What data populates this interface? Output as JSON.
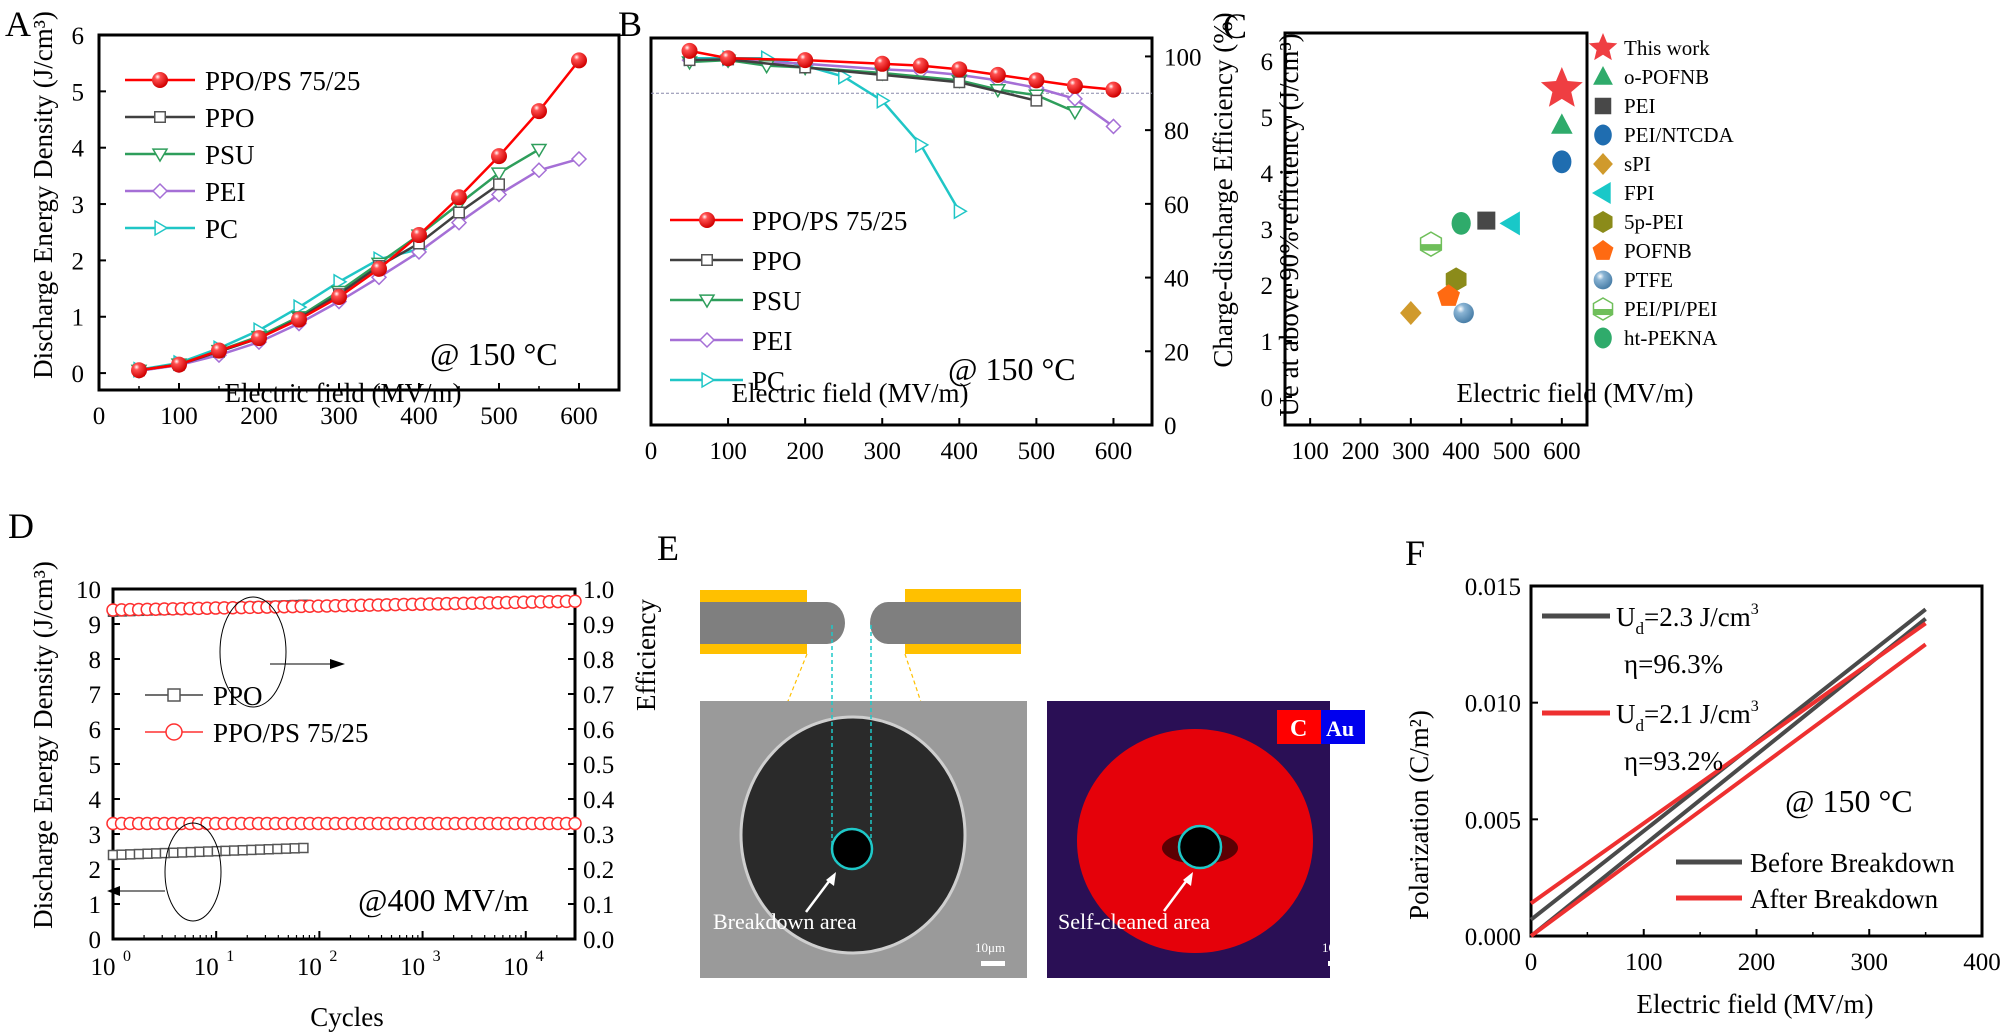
{
  "chart_data": [
    {
      "panel": "A",
      "type": "line",
      "xlabel": "Electric field (MV/m)",
      "ylabel": "Discharge Energy Density (J/cm³)",
      "xlim": [
        0,
        650
      ],
      "ylim": [
        -0.3,
        6
      ],
      "xticks": [
        0,
        100,
        200,
        300,
        400,
        500,
        600
      ],
      "yticks": [
        0,
        1,
        2,
        3,
        4,
        5,
        6
      ],
      "annotation": "@ 150 °C",
      "legend_position": "top-left",
      "series": [
        {
          "name": "PPO/PS 75/25",
          "color": "#ff0000",
          "marker": "ball",
          "x": [
            50,
            100,
            150,
            200,
            250,
            300,
            350,
            400,
            450,
            500,
            550,
            600
          ],
          "y": [
            0.05,
            0.15,
            0.4,
            0.62,
            0.95,
            1.35,
            1.85,
            2.45,
            3.12,
            3.85,
            4.65,
            5.55
          ]
        },
        {
          "name": "PPO",
          "color": "#404040",
          "marker": "square",
          "x": [
            50,
            100,
            150,
            200,
            250,
            300,
            350,
            400,
            450,
            500
          ],
          "y": [
            0.05,
            0.15,
            0.38,
            0.62,
            0.97,
            1.4,
            1.9,
            2.3,
            2.85,
            3.35
          ]
        },
        {
          "name": "PSU",
          "color": "#2e9e5b",
          "marker": "triangle-down",
          "x": [
            50,
            100,
            150,
            200,
            250,
            300,
            350,
            400,
            450,
            500,
            550
          ],
          "y": [
            0.05,
            0.16,
            0.4,
            0.65,
            1.0,
            1.45,
            1.95,
            2.45,
            3.0,
            3.55,
            3.97
          ]
        },
        {
          "name": "PEI",
          "color": "#a56fd6",
          "marker": "diamond",
          "x": [
            50,
            100,
            150,
            200,
            250,
            300,
            350,
            400,
            450,
            500,
            550,
            600
          ],
          "y": [
            0.04,
            0.14,
            0.32,
            0.55,
            0.88,
            1.27,
            1.7,
            2.15,
            2.67,
            3.17,
            3.6,
            3.8
          ]
        },
        {
          "name": "PC",
          "color": "#20c6c6",
          "marker": "triangle-right",
          "x": [
            50,
            100,
            150,
            200,
            250,
            300,
            350,
            400
          ],
          "y": [
            0.06,
            0.18,
            0.44,
            0.76,
            1.17,
            1.62,
            2.02,
            2.2
          ]
        }
      ]
    },
    {
      "panel": "B",
      "type": "line",
      "xlabel": "Electric field (MV/m)",
      "ylabel": "Charge-discharge Efficiency (%)",
      "xlim": [
        0,
        650
      ],
      "ylim": [
        0,
        105
      ],
      "xticks": [
        0,
        100,
        200,
        300,
        400,
        500,
        600
      ],
      "yticks": [
        0,
        20,
        40,
        60,
        80,
        100
      ],
      "y_axis_side": "right",
      "reference_line_y": 90,
      "annotation": "@ 150 °C",
      "legend_position": "bottom-left",
      "series": [
        {
          "name": "PPO/PS 75/25",
          "color": "#ff0000",
          "marker": "ball",
          "x": [
            50,
            100,
            200,
            300,
            350,
            400,
            450,
            500,
            550,
            600
          ],
          "y": [
            101.5,
            99.5,
            99,
            98,
            97.5,
            96.5,
            95,
            93.5,
            92,
            91
          ]
        },
        {
          "name": "PPO",
          "color": "#404040",
          "marker": "square",
          "x": [
            50,
            100,
            200,
            300,
            400,
            500
          ],
          "y": [
            99,
            99.2,
            97,
            95,
            93,
            88
          ]
        },
        {
          "name": "PSU",
          "color": "#2e9e5b",
          "marker": "triangle-down",
          "x": [
            50,
            100,
            150,
            200,
            300,
            400,
            450,
            500,
            550
          ],
          "y": [
            98.5,
            99,
            97.5,
            97,
            95.5,
            93.5,
            91,
            89.5,
            85
          ]
        },
        {
          "name": "PEI",
          "color": "#a56fd6",
          "marker": "diamond",
          "x": [
            50,
            100,
            200,
            300,
            350,
            400,
            450,
            500,
            550,
            600
          ],
          "y": [
            99,
            99,
            98,
            96.5,
            96,
            95,
            93.5,
            91.5,
            88.5,
            81
          ]
        },
        {
          "name": "PC",
          "color": "#20c6c6",
          "marker": "triangle-right",
          "x": [
            50,
            100,
            150,
            200,
            250,
            300,
            350,
            400
          ],
          "y": [
            99.5,
            99.5,
            99.5,
            97.5,
            94.5,
            88,
            76,
            58
          ]
        }
      ]
    },
    {
      "panel": "C",
      "type": "scatter",
      "xlabel": "Electric field (MV/m)",
      "ylabel": "Ue at above 90% efficiency (J/cm³)",
      "xlim": [
        50,
        650
      ],
      "ylim": [
        -0.5,
        6.5
      ],
      "xticks": [
        100,
        200,
        300,
        400,
        500,
        600
      ],
      "yticks": [
        0,
        1,
        2,
        3,
        4,
        5,
        6
      ],
      "legend_position": "right-outside",
      "points": [
        {
          "name": "This work",
          "x": 600,
          "y": 5.5,
          "color": "#ef3e42",
          "marker": "star"
        },
        {
          "name": "o-POFNB",
          "x": 600,
          "y": 4.85,
          "color": "#2fab6b",
          "marker": "triangle-up"
        },
        {
          "name": "PEI",
          "x": 450,
          "y": 3.15,
          "color": "#484848",
          "marker": "square"
        },
        {
          "name": "PEI/NTCDA",
          "x": 600,
          "y": 4.2,
          "color": "#1f6db0",
          "marker": "circle"
        },
        {
          "name": "sPI",
          "x": 300,
          "y": 1.5,
          "color": "#d09a2c",
          "marker": "diamond"
        },
        {
          "name": "FPI",
          "x": 500,
          "y": 3.1,
          "color": "#19c8c8",
          "marker": "triangle-left"
        },
        {
          "name": "5p-PEI",
          "x": 390,
          "y": 2.1,
          "color": "#8b8b1a",
          "marker": "hexagon"
        },
        {
          "name": "POFNB",
          "x": 375,
          "y": 1.8,
          "color": "#ff6a12",
          "marker": "pentagon"
        },
        {
          "name": "PTFE",
          "x": 405,
          "y": 1.5,
          "color": "#5f95c0",
          "marker": "ball"
        },
        {
          "name": "PEI/PI/PEI",
          "x": 340,
          "y": 2.73,
          "color": "#6fbf5a",
          "marker": "hexagon-half"
        },
        {
          "name": "ht-PEKNA",
          "x": 400,
          "y": 3.1,
          "color": "#2fab6b",
          "marker": "circle"
        }
      ]
    },
    {
      "panel": "D",
      "type": "scatter",
      "xlabel": "Cycles",
      "ylabel_left": "Discharge Energy Density (J/cm³)",
      "ylabel_right": "Efficiency",
      "xscale": "log",
      "xlim": [
        1,
        30000
      ],
      "ylim_left": [
        0,
        10
      ],
      "ylim_right": [
        0,
        1.0
      ],
      "xticks": [
        "10^0",
        "10^1",
        "10^2",
        "10^3",
        "10^4"
      ],
      "yticks_left": [
        0,
        1,
        2,
        3,
        4,
        5,
        6,
        7,
        8,
        9,
        10
      ],
      "yticks_right": [
        "0.0",
        "0.1",
        "0.2",
        "0.3",
        "0.4",
        "0.5",
        "0.6",
        "0.7",
        "0.8",
        "0.9",
        "1.0"
      ],
      "annotation": "@400 MV/m",
      "legend_position": "middle-left",
      "series": [
        {
          "name": "PPO",
          "color": "#404040",
          "marker": "square",
          "energy": {
            "x_range": [
              1,
              70
            ],
            "y_start": 2.4,
            "y_end": 2.6
          },
          "efficiency": {
            "x_range": [
              1,
              70
            ],
            "y_start": 0.935,
            "y_end": 0.955
          }
        },
        {
          "name": "PPO/PS 75/25",
          "color": "#ff3030",
          "marker": "circle-open",
          "energy": {
            "x_range": [
              1,
              30000
            ],
            "y_start": 3.3,
            "y_end": 3.3
          },
          "efficiency": {
            "x_range": [
              1,
              30000
            ],
            "y_start": 0.94,
            "y_end": 0.965
          }
        }
      ]
    },
    {
      "panel": "F",
      "type": "line",
      "xlabel": "Electric field (MV/m)",
      "ylabel": "Polarization (C/m²)",
      "xlim": [
        0,
        400
      ],
      "ylim": [
        0,
        0.015
      ],
      "xticks": [
        0,
        100,
        200,
        300,
        400
      ],
      "yticks": [
        "0.000",
        "0.005",
        "0.010",
        "0.015"
      ],
      "annotation": "@ 150 °C",
      "legend_position": "bottom-right",
      "series": [
        {
          "name": "Before Breakdown",
          "color": "#4a4a4a",
          "Emax": 350,
          "Pmax": 0.0136,
          "P0": 0.0003,
          "loop_width": 0.0004,
          "Ud_label": "U",
          "Ud_sub": "d",
          "Ud_value": "=2.3 J/cm",
          "eta": "η=96.3%"
        },
        {
          "name": "After Breakdown",
          "color": "#ee3030",
          "Emax": 350,
          "Pmax": 0.0125,
          "P0": 0.0005,
          "loop_width": 0.0009,
          "Ud_label": "U",
          "Ud_sub": "d",
          "Ud_value": "=2.1 J/cm",
          "eta": "η=93.2%"
        }
      ]
    }
  ],
  "panels": {
    "A": {
      "letter": "A"
    },
    "B": {
      "letter": "B"
    },
    "C": {
      "letter": "C"
    },
    "D": {
      "letter": "D"
    },
    "E": {
      "letter": "E",
      "sem_label": "Breakdown area",
      "map_label": "Self-cleaned area",
      "scale_bar": "10μm",
      "element_c": "C",
      "element_au": "Au",
      "colors": {
        "gold": "#ffc000",
        "film": "#7f7f7f",
        "cyan": "#1fc8c8",
        "carbon": "#ff0000",
        "gold_map": "#1a1ad0"
      }
    },
    "F": {
      "letter": "F"
    }
  }
}
